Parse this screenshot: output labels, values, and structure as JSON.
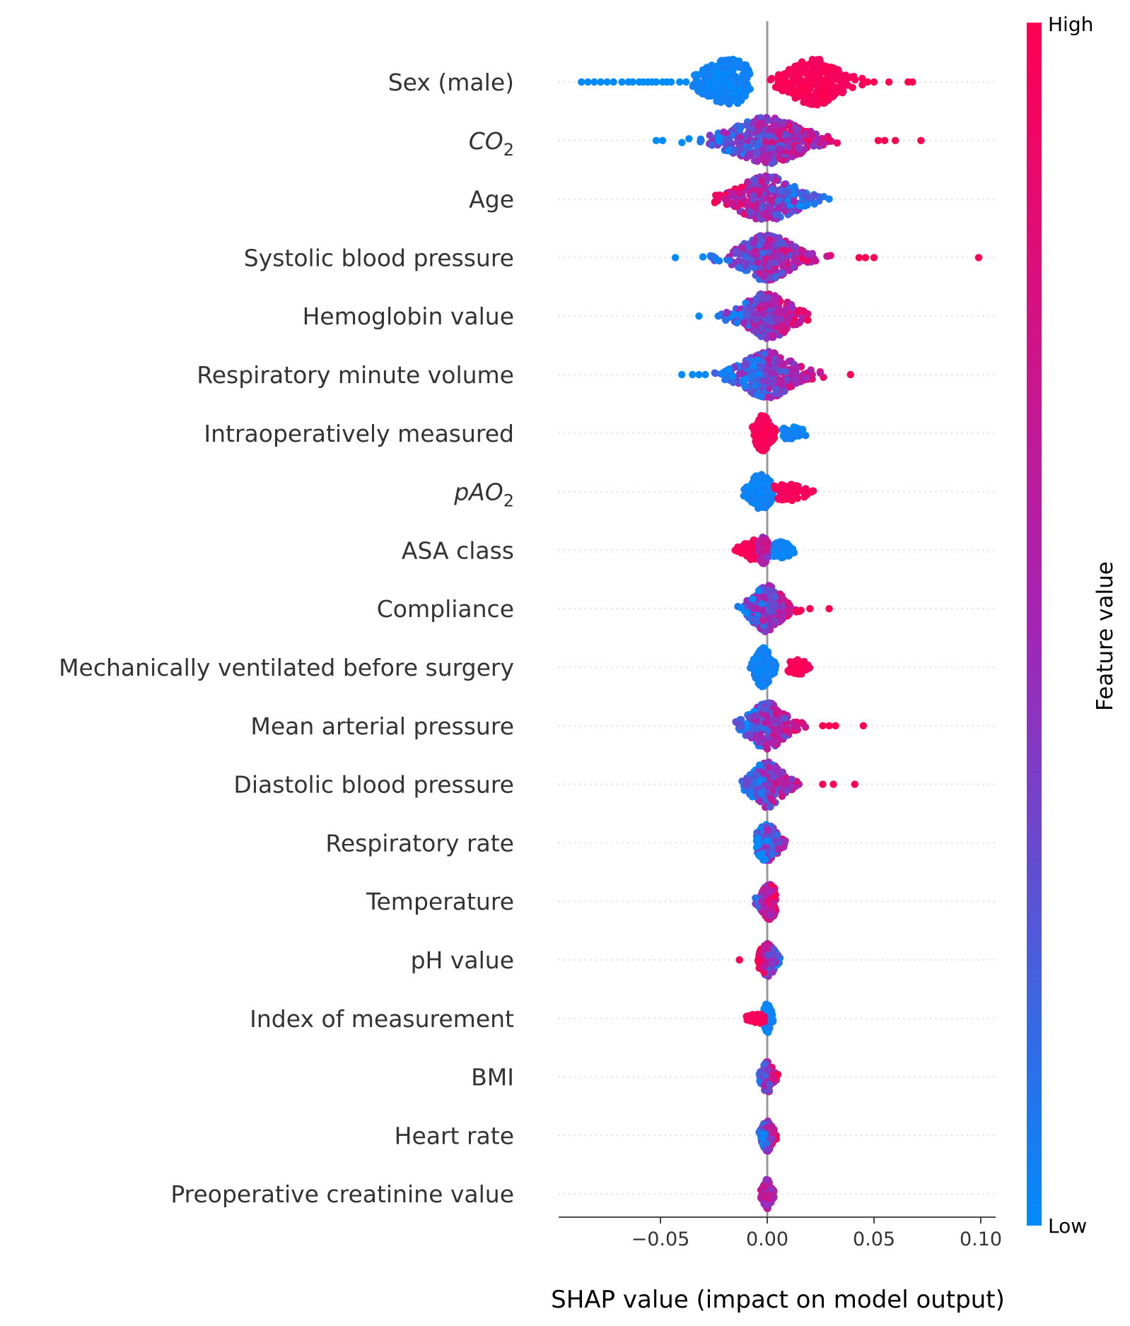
{
  "chart_data": {
    "type": "scatter",
    "subtype": "shap-beeswarm",
    "xlabel": "SHAP value (impact on model output)",
    "xlim": [
      -0.097,
      0.108
    ],
    "xticks": [
      -0.05,
      0.0,
      0.05,
      0.1
    ],
    "xtick_labels": [
      "−0.05",
      "0.00",
      "0.05",
      "0.10"
    ],
    "grid": false,
    "zero_line": true,
    "colorbar": {
      "label": "Feature value",
      "high_label": "High",
      "low_label": "Low",
      "low_color": "#008bfb",
      "mid_color": "#a524b5",
      "high_color": "#ff0052"
    },
    "features": [
      {
        "name": "Sex (male)",
        "clusters": [
          {
            "min": -0.035,
            "max": -0.008,
            "center": -0.018,
            "width": 0.01,
            "count": 260,
            "color_mode": "low"
          },
          {
            "min": 0.001,
            "max": 0.045,
            "center": 0.022,
            "width": 0.01,
            "count": 260,
            "color_mode": "high"
          }
        ],
        "outliers": [
          {
            "x": -0.087,
            "c": 0.0
          },
          {
            "x": -0.084,
            "c": 0.0
          },
          {
            "x": -0.081,
            "c": 0.0
          },
          {
            "x": -0.078,
            "c": 0.0
          },
          {
            "x": -0.075,
            "c": 0.0
          },
          {
            "x": -0.072,
            "c": 0.0
          },
          {
            "x": -0.068,
            "c": 0.0
          },
          {
            "x": -0.065,
            "c": 0.0
          },
          {
            "x": -0.063,
            "c": 0.0
          },
          {
            "x": -0.06,
            "c": 0.0
          },
          {
            "x": -0.058,
            "c": 0.0
          },
          {
            "x": -0.056,
            "c": 0.0
          },
          {
            "x": -0.054,
            "c": 0.0
          },
          {
            "x": -0.052,
            "c": 0.0
          },
          {
            "x": -0.049,
            "c": 0.0
          },
          {
            "x": -0.047,
            "c": 0.0
          },
          {
            "x": -0.045,
            "c": 0.0
          },
          {
            "x": -0.041,
            "c": 0.0
          },
          {
            "x": -0.038,
            "c": 0.0
          },
          {
            "x": 0.047,
            "c": 1.0
          },
          {
            "x": 0.05,
            "c": 1.0
          },
          {
            "x": 0.057,
            "c": 1.0
          },
          {
            "x": 0.066,
            "c": 1.0
          },
          {
            "x": 0.068,
            "c": 1.0
          }
        ]
      },
      {
        "name": "CO2",
        "name_italic": true,
        "name_base": "CO",
        "name_sub": "2",
        "clusters": [
          {
            "min": -0.045,
            "max": 0.048,
            "center": 0.0,
            "width": 0.014,
            "count": 380,
            "color_mode": "pos"
          }
        ],
        "outliers": [
          {
            "x": -0.052,
            "c": 0.0
          },
          {
            "x": -0.049,
            "c": 0.0
          },
          {
            "x": 0.052,
            "c": 1.0
          },
          {
            "x": 0.055,
            "c": 1.0
          },
          {
            "x": 0.06,
            "c": 1.0
          },
          {
            "x": 0.072,
            "c": 1.0
          }
        ]
      },
      {
        "name": "Age",
        "clusters": [
          {
            "min": -0.026,
            "max": 0.028,
            "center": 0.0,
            "width": 0.011,
            "count": 300,
            "color_mode": "neg"
          }
        ],
        "outliers": [
          {
            "x": 0.029,
            "c": 0.05
          }
        ]
      },
      {
        "name": "Systolic blood pressure",
        "clusters": [
          {
            "min": -0.04,
            "max": 0.04,
            "center": 0.0,
            "width": 0.01,
            "count": 300,
            "color_mode": "pos"
          }
        ],
        "outliers": [
          {
            "x": -0.043,
            "c": 0.0
          },
          {
            "x": 0.043,
            "c": 1.0
          },
          {
            "x": 0.046,
            "c": 1.0
          },
          {
            "x": 0.05,
            "c": 1.0
          },
          {
            "x": 0.099,
            "c": 1.0
          }
        ]
      },
      {
        "name": "Hemoglobin value",
        "clusters": [
          {
            "min": -0.03,
            "max": 0.023,
            "center": 0.0,
            "width": 0.009,
            "count": 260,
            "color_mode": "pos"
          }
        ],
        "outliers": [
          {
            "x": -0.032,
            "c": 0.0
          }
        ]
      },
      {
        "name": "Respiratory minute volume",
        "clusters": [
          {
            "min": -0.026,
            "max": 0.036,
            "center": 0.0,
            "width": 0.01,
            "count": 280,
            "color_mode": "pos"
          }
        ],
        "outliers": [
          {
            "x": -0.04,
            "c": 0.0
          },
          {
            "x": -0.035,
            "c": 0.0
          },
          {
            "x": -0.032,
            "c": 0.0
          },
          {
            "x": -0.029,
            "c": 0.0
          },
          {
            "x": 0.039,
            "c": 1.0
          }
        ]
      },
      {
        "name": "Intraoperatively measured",
        "clusters": [
          {
            "min": -0.007,
            "max": 0.004,
            "center": -0.002,
            "width": 0.003,
            "count": 150,
            "color_mode": "high"
          },
          {
            "min": 0.007,
            "max": 0.018,
            "center": 0.011,
            "width": 0.004,
            "count": 40,
            "color_mode": "low"
          }
        ],
        "outliers": []
      },
      {
        "name": "pAO2",
        "name_italic": true,
        "name_base": "pAO",
        "name_sub": "2",
        "clusters": [
          {
            "min": -0.011,
            "max": 0.003,
            "center": -0.003,
            "width": 0.004,
            "count": 150,
            "color_mode": "low"
          },
          {
            "min": 0.003,
            "max": 0.022,
            "center": 0.01,
            "width": 0.006,
            "count": 70,
            "color_mode": "high"
          }
        ],
        "outliers": []
      },
      {
        "name": "ASA class",
        "clusters": [
          {
            "min": -0.014,
            "max": -0.002,
            "center": -0.006,
            "width": 0.004,
            "count": 80,
            "color_mode": "high"
          },
          {
            "min": -0.004,
            "max": 0.004,
            "center": -0.002,
            "width": 0.002,
            "count": 110,
            "color_mode": "mid"
          },
          {
            "min": 0.003,
            "max": 0.013,
            "center": 0.006,
            "width": 0.004,
            "count": 60,
            "color_mode": "low"
          }
        ],
        "outliers": [
          {
            "x": -0.015,
            "c": 1.0
          }
        ]
      },
      {
        "name": "Compliance",
        "clusters": [
          {
            "min": -0.015,
            "max": 0.018,
            "center": 0.0,
            "width": 0.006,
            "count": 230,
            "color_mode": "pos"
          }
        ],
        "outliers": [
          {
            "x": 0.02,
            "c": 1.0
          },
          {
            "x": 0.029,
            "c": 1.0
          }
        ]
      },
      {
        "name": "Mechanically ventilated before surgery",
        "clusters": [
          {
            "min": -0.008,
            "max": 0.004,
            "center": -0.002,
            "width": 0.003,
            "count": 170,
            "color_mode": "low"
          },
          {
            "min": 0.009,
            "max": 0.021,
            "center": 0.014,
            "width": 0.004,
            "count": 50,
            "color_mode": "high"
          }
        ],
        "outliers": []
      },
      {
        "name": "Mean arterial pressure",
        "clusters": [
          {
            "min": -0.015,
            "max": 0.022,
            "center": 0.0,
            "width": 0.007,
            "count": 240,
            "color_mode": "pos"
          }
        ],
        "outliers": [
          {
            "x": 0.026,
            "c": 1.0
          },
          {
            "x": 0.029,
            "c": 1.0
          },
          {
            "x": 0.032,
            "c": 1.0
          },
          {
            "x": 0.045,
            "c": 1.0
          }
        ]
      },
      {
        "name": "Diastolic blood pressure",
        "clusters": [
          {
            "min": -0.012,
            "max": 0.02,
            "center": 0.0,
            "width": 0.006,
            "count": 230,
            "color_mode": "pos"
          }
        ],
        "outliers": [
          {
            "x": 0.026,
            "c": 1.0
          },
          {
            "x": 0.031,
            "c": 1.0
          },
          {
            "x": 0.041,
            "c": 1.0
          }
        ]
      },
      {
        "name": "Respiratory rate",
        "clusters": [
          {
            "min": -0.005,
            "max": 0.014,
            "center": 0.0,
            "width": 0.004,
            "count": 160,
            "color_mode": "pos"
          }
        ],
        "outliers": []
      },
      {
        "name": "Temperature",
        "clusters": [
          {
            "min": -0.009,
            "max": 0.004,
            "center": 0.001,
            "width": 0.003,
            "count": 150,
            "color_mode": "pos"
          }
        ],
        "outliers": []
      },
      {
        "name": "pH value",
        "clusters": [
          {
            "min": -0.005,
            "max": 0.006,
            "center": 0.0,
            "width": 0.003,
            "count": 140,
            "color_mode": "neg"
          }
        ],
        "outliers": [
          {
            "x": -0.013,
            "c": 1.0
          }
        ]
      },
      {
        "name": "Index of measurement",
        "clusters": [
          {
            "min": -0.002,
            "max": 0.003,
            "center": 0.0,
            "width": 0.0015,
            "count": 120,
            "color_mode": "low"
          },
          {
            "min": -0.01,
            "max": -0.001,
            "center": -0.004,
            "width": 0.003,
            "count": 30,
            "color_mode": "high"
          }
        ],
        "outliers": []
      },
      {
        "name": "BMI",
        "clusters": [
          {
            "min": -0.004,
            "max": 0.005,
            "center": 0.0,
            "width": 0.002,
            "count": 130,
            "color_mode": "pos"
          }
        ],
        "outliers": []
      },
      {
        "name": "Heart rate",
        "clusters": [
          {
            "min": -0.004,
            "max": 0.005,
            "center": 0.0,
            "width": 0.002,
            "count": 130,
            "color_mode": "pos"
          }
        ],
        "outliers": []
      },
      {
        "name": "Preoperative creatinine value",
        "clusters": [
          {
            "min": -0.003,
            "max": 0.004,
            "center": 0.0,
            "width": 0.0015,
            "count": 120,
            "color_mode": "mid"
          }
        ],
        "outliers": []
      }
    ]
  }
}
